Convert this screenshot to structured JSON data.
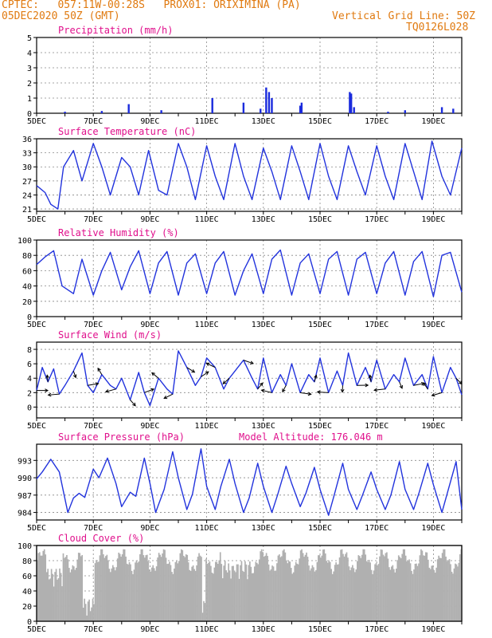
{
  "header": {
    "left_line1": "CPTEC:   057:11W-00:28S   PROX01: ORIXIMINA (PA)",
    "left_line2": "05DEC2020 50Z (GMT)",
    "right_line2": "Vertical Grid Line: 50Z",
    "right_line3": "TQ0126L028",
    "text_color": "#e07a10",
    "title_color": "#e0108c",
    "line_color": "#2233dd",
    "bar_color": "#1a2bdd",
    "cloud_color": "#b0b0b0"
  },
  "x_axis": {
    "day_start": 5,
    "day_end": 20,
    "major_ticks": [
      "5DEC",
      "7DEC",
      "9DEC",
      "11DEC",
      "13DEC",
      "15DEC",
      "17DEC",
      "19DEC"
    ],
    "major_days": [
      5,
      7,
      9,
      11,
      13,
      15,
      17,
      19
    ]
  },
  "panels": {
    "precip": {
      "title": "Precipitation (mm/h)",
      "y_min": 0,
      "y_max": 5,
      "ticks": [
        0,
        1,
        2,
        3,
        4,
        5
      ]
    },
    "temperature": {
      "title": "Surface Temperature (nC)",
      "y_min": 20.5,
      "y_max": 36,
      "ticks": [
        21,
        24,
        27,
        30,
        33,
        36
      ]
    },
    "humidity": {
      "title": "Relative Humidity (%)",
      "y_min": 0,
      "y_max": 100,
      "ticks": [
        0,
        20,
        40,
        60,
        80,
        100
      ]
    },
    "wind": {
      "title": "Surface Wind (m/s)",
      "y_min": -1.5,
      "y_max": 9,
      "ticks": [
        0,
        2,
        4,
        6,
        8
      ]
    },
    "pressure": {
      "title": "Surface Pressure (hPa)",
      "subtitle": "Model Altitude: 176.046 m",
      "y_min": 982.7,
      "y_max": 995.8,
      "ticks": [
        984,
        987,
        990,
        993
      ]
    },
    "cloud": {
      "title": "Cloud Cover (%)",
      "y_min": 0,
      "y_max": 100,
      "ticks": [
        0,
        20,
        40,
        60,
        80,
        100
      ]
    }
  },
  "chart_data": [
    {
      "type": "bar",
      "title": "Precipitation (mm/h)",
      "x_unit": "day of December 2020",
      "x": [
        6.0,
        7.3,
        8.25,
        9.4,
        11.2,
        12.3,
        12.9,
        13.1,
        13.2,
        13.3,
        14.3,
        14.35,
        16.05,
        16.1,
        16.2,
        17.4,
        18.0,
        19.3,
        19.7
      ],
      "values": [
        0.1,
        0.15,
        0.6,
        0.2,
        1.0,
        0.7,
        0.3,
        1.7,
        1.4,
        1.0,
        0.5,
        0.7,
        1.4,
        1.3,
        0.4,
        0.1,
        0.2,
        0.4,
        0.3
      ],
      "ylim": [
        0,
        5
      ]
    },
    {
      "type": "line",
      "title": "Surface Temperature (nC)",
      "x_unit": "day of December 2020",
      "x": [
        5.0,
        5.3,
        5.5,
        5.75,
        5.95,
        6.3,
        6.6,
        7.0,
        7.3,
        7.6,
        8.0,
        8.3,
        8.6,
        8.95,
        9.3,
        9.6,
        10.0,
        10.3,
        10.6,
        11.0,
        11.3,
        11.6,
        12.0,
        12.3,
        12.6,
        13.0,
        13.3,
        13.6,
        14.0,
        14.3,
        14.6,
        15.0,
        15.3,
        15.6,
        16.0,
        16.3,
        16.6,
        17.0,
        17.3,
        17.6,
        18.0,
        18.3,
        18.6,
        18.95,
        19.3,
        19.6,
        20.0
      ],
      "values": [
        26,
        24.5,
        22,
        21,
        30,
        33.5,
        27,
        35,
        30,
        24,
        32,
        30,
        24,
        33.5,
        25,
        24,
        35,
        30,
        23,
        34.5,
        28,
        23,
        35,
        28,
        23,
        34,
        29,
        23,
        34.5,
        29,
        23,
        35,
        28,
        23,
        34.5,
        29,
        24,
        34.5,
        28,
        23,
        35,
        29,
        23,
        35.5,
        28,
        24,
        34
      ],
      "ylim": [
        20.5,
        36
      ]
    },
    {
      "type": "line",
      "title": "Relative Humidity (%)",
      "x_unit": "day of December 2020",
      "x": [
        5.0,
        5.3,
        5.6,
        5.9,
        6.3,
        6.6,
        7.0,
        7.3,
        7.6,
        8.0,
        8.3,
        8.6,
        9.0,
        9.3,
        9.6,
        10.0,
        10.3,
        10.6,
        11.0,
        11.3,
        11.6,
        12.0,
        12.3,
        12.6,
        13.0,
        13.3,
        13.6,
        14.0,
        14.3,
        14.6,
        15.0,
        15.3,
        15.6,
        16.0,
        16.3,
        16.6,
        17.0,
        17.3,
        17.6,
        18.0,
        18.3,
        18.6,
        19.0,
        19.3,
        19.6,
        20.0
      ],
      "values": [
        68,
        78,
        86,
        40,
        30,
        75,
        28,
        60,
        84,
        35,
        65,
        86,
        30,
        70,
        85,
        28,
        70,
        82,
        30,
        70,
        85,
        28,
        60,
        82,
        30,
        75,
        87,
        28,
        70,
        82,
        30,
        75,
        85,
        28,
        75,
        84,
        30,
        70,
        85,
        28,
        72,
        85,
        26,
        80,
        84,
        32
      ],
      "ylim": [
        0,
        100
      ]
    },
    {
      "type": "line",
      "title": "Surface Wind (m/s)",
      "x_unit": "day of December 2020",
      "x": [
        5.0,
        5.2,
        5.4,
        5.6,
        5.8,
        6.0,
        6.3,
        6.6,
        6.8,
        7.0,
        7.3,
        7.6,
        7.8,
        8.0,
        8.3,
        8.6,
        8.8,
        9.0,
        9.3,
        9.6,
        9.8,
        10.0,
        10.3,
        10.6,
        10.8,
        11.0,
        11.3,
        11.6,
        11.8,
        12.0,
        12.3,
        12.6,
        12.8,
        13.0,
        13.3,
        13.6,
        13.8,
        14.0,
        14.3,
        14.6,
        14.8,
        15.0,
        15.3,
        15.6,
        15.8,
        16.0,
        16.3,
        16.6,
        16.8,
        17.0,
        17.3,
        17.6,
        17.8,
        18.0,
        18.3,
        18.6,
        18.8,
        19.0,
        19.3,
        19.6,
        19.8,
        20.0
      ],
      "values": [
        2.3,
        5.5,
        3.5,
        5.3,
        1.8,
        3.0,
        5.0,
        7.5,
        3.0,
        2.0,
        4.5,
        3.0,
        2.5,
        4.0,
        1.0,
        4.8,
        2.0,
        0.2,
        4.0,
        2.5,
        1.8,
        7.8,
        5.5,
        3.0,
        4.2,
        6.8,
        5.5,
        2.5,
        4.0,
        5.0,
        6.5,
        4.0,
        2.5,
        6.8,
        2.0,
        4.5,
        3.0,
        6.0,
        2.0,
        4.5,
        3.5,
        6.8,
        2.0,
        5.0,
        3.0,
        7.5,
        3.0,
        5.5,
        3.5,
        6.5,
        2.5,
        4.5,
        3.5,
        6.8,
        3.0,
        4.5,
        2.5,
        7.0,
        2.0,
        5.5,
        4.0,
        1.7
      ],
      "ylim": [
        -1.5,
        9
      ]
    },
    {
      "type": "line",
      "title": "Surface Pressure (hPa)",
      "x_unit": "day of December 2020",
      "x": [
        5.0,
        5.2,
        5.5,
        5.8,
        6.1,
        6.3,
        6.5,
        6.7,
        7.0,
        7.2,
        7.5,
        7.8,
        8.0,
        8.3,
        8.5,
        8.8,
        9.0,
        9.2,
        9.5,
        9.8,
        10.0,
        10.3,
        10.5,
        10.8,
        11.0,
        11.3,
        11.5,
        11.8,
        12.0,
        12.3,
        12.5,
        12.8,
        13.0,
        13.3,
        13.5,
        13.8,
        14.0,
        14.3,
        14.5,
        14.8,
        15.0,
        15.3,
        15.5,
        15.8,
        16.0,
        16.3,
        16.5,
        16.8,
        17.0,
        17.3,
        17.5,
        17.8,
        18.0,
        18.3,
        18.5,
        18.8,
        19.0,
        19.3,
        19.5,
        19.8,
        20.0
      ],
      "values": [
        989.8,
        991,
        993.2,
        991,
        984,
        986.5,
        987.3,
        986.6,
        991.5,
        990,
        993.4,
        989,
        985,
        987.5,
        986.8,
        993.4,
        989,
        984,
        988,
        994.5,
        990,
        984.5,
        987.2,
        995,
        988.5,
        984.5,
        988.5,
        993.2,
        989,
        984,
        986.5,
        992.5,
        988.5,
        984,
        987,
        992,
        989,
        985,
        987.3,
        991.8,
        988,
        983.5,
        987,
        992.5,
        988,
        984.5,
        987,
        991,
        988,
        984.5,
        987,
        992.8,
        988,
        984.5,
        987.5,
        992.5,
        988.8,
        984,
        987.5,
        992.8,
        984.5
      ],
      "ylim": [
        982.7,
        995.8
      ]
    },
    {
      "type": "bar",
      "title": "Cloud Cover (%)",
      "x_unit": "day of December 2020",
      "note": "dense hourly gray bars, mostly 75-95%, dips near 5-6DEC, 6.6-7DEC, 10.8DEC, 11.5-12.5DEC",
      "ylim": [
        0,
        100
      ]
    }
  ]
}
